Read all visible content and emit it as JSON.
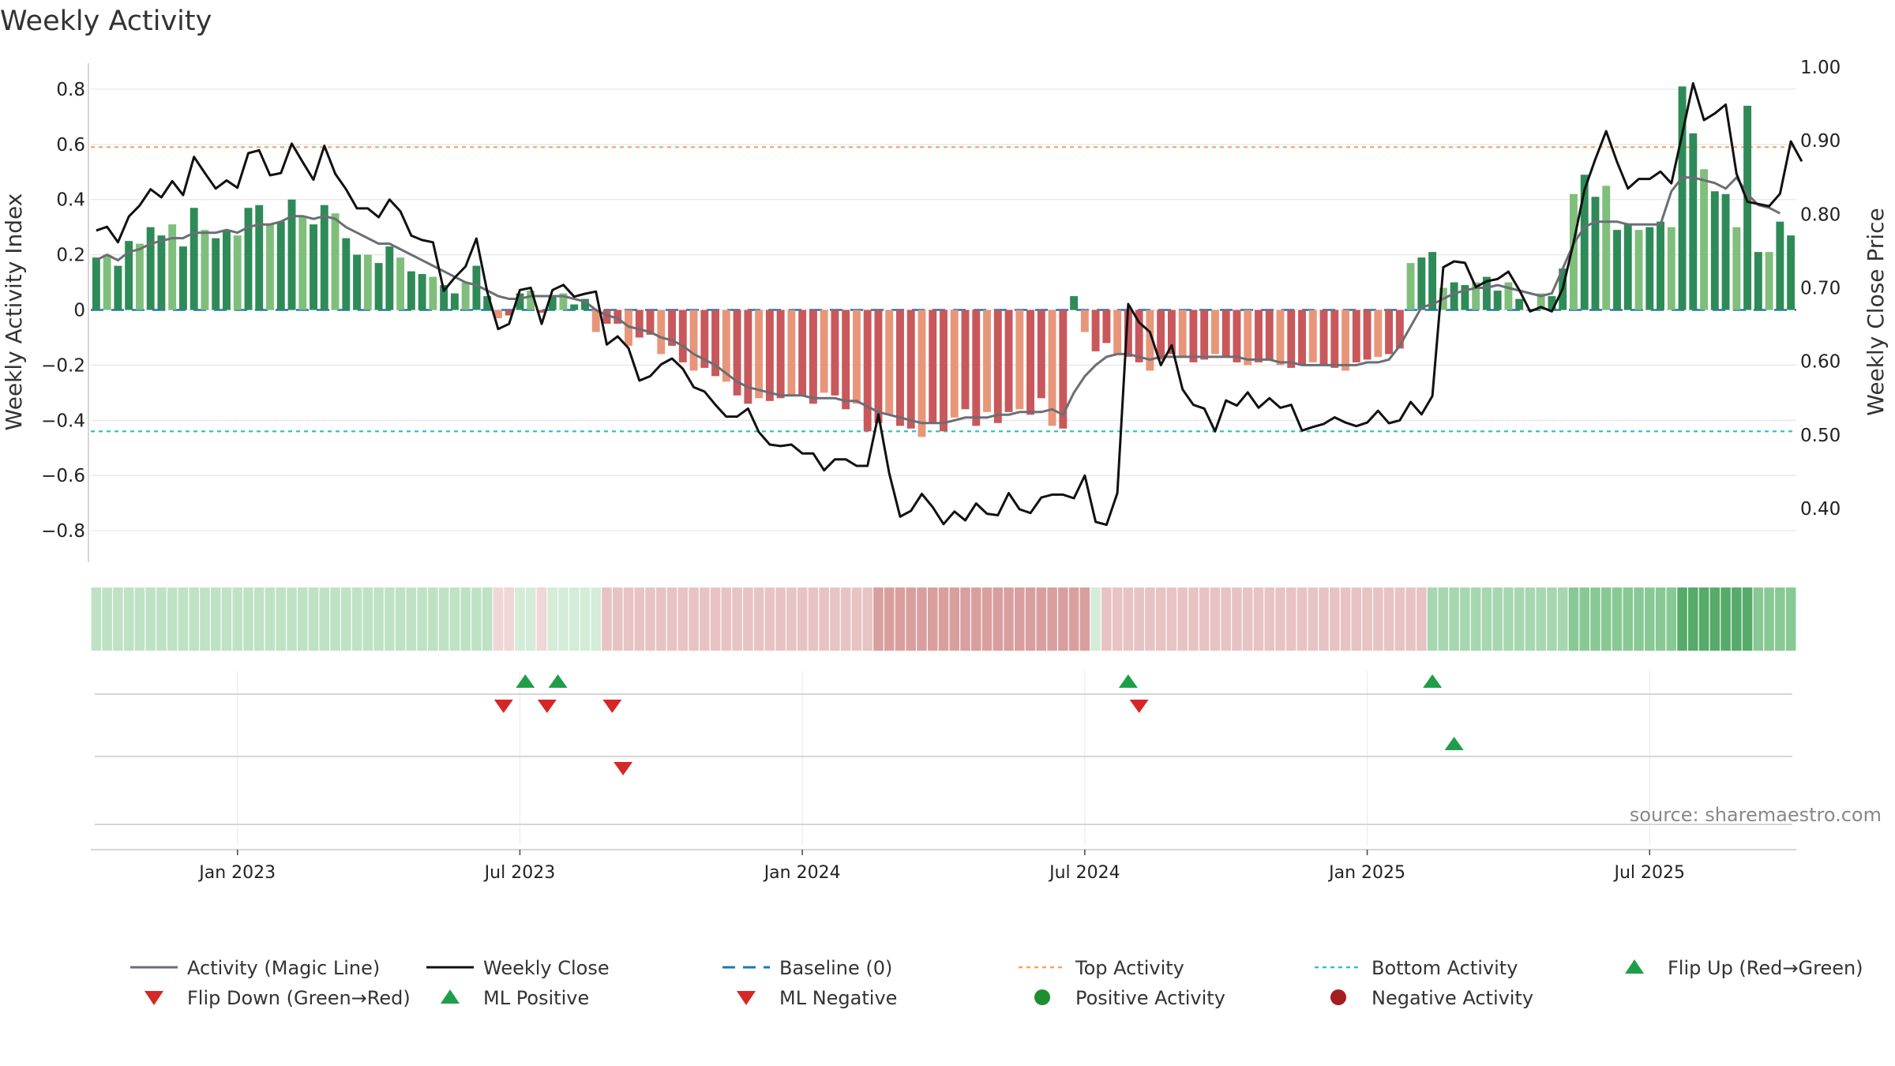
{
  "chart_data": {
    "type": "bar+line",
    "title": "Weekly Activity",
    "ylabel": "Weekly Activity Index",
    "y2label": "Weekly Close Price",
    "ylim": [
      -0.88,
      0.88
    ],
    "y2lim": [
      0.34,
      1.0
    ],
    "yticks": [
      0.8,
      0.6,
      0.4,
      0.2,
      0,
      -0.2,
      -0.4,
      -0.6,
      -0.8
    ],
    "ytick_labels": [
      "0.8",
      "0.6",
      "0.4",
      "0.2",
      "0",
      "−0.2",
      "−0.4",
      "−0.6",
      "−0.8"
    ],
    "y2ticks": [
      1.0,
      0.9,
      0.8,
      0.7,
      0.6,
      0.5,
      0.4
    ],
    "y2tick_labels": [
      "1.00",
      "0.90",
      "0.80",
      "0.70",
      "0.60",
      "0.50",
      "0.40"
    ],
    "xticks": [
      {
        "week": 13,
        "label": "Jan 2023"
      },
      {
        "week": 39,
        "label": "Jul 2023"
      },
      {
        "week": 65,
        "label": "Jan 2024"
      },
      {
        "week": 91,
        "label": "Jul 2024"
      },
      {
        "week": 117,
        "label": "Jan 2025"
      },
      {
        "week": 143,
        "label": "Jul 2025"
      }
    ],
    "top_activity": 0.59,
    "bottom_activity": -0.44,
    "baseline": 0,
    "activity": [
      0.19,
      0.2,
      0.16,
      0.25,
      0.24,
      0.3,
      0.27,
      0.31,
      0.23,
      0.37,
      0.29,
      0.26,
      0.29,
      0.27,
      0.37,
      0.38,
      0.31,
      0.32,
      0.4,
      0.34,
      0.31,
      0.38,
      0.35,
      0.26,
      0.2,
      0.2,
      0.17,
      0.23,
      0.19,
      0.14,
      0.13,
      0.12,
      0.09,
      0.06,
      0.1,
      0.16,
      0.05,
      -0.03,
      -0.02,
      0.06,
      0.07,
      -0.01,
      0.05,
      0.06,
      0.02,
      0.04,
      -0.08,
      -0.05,
      -0.05,
      -0.13,
      -0.1,
      -0.09,
      -0.16,
      -0.13,
      -0.19,
      -0.22,
      -0.21,
      -0.24,
      -0.26,
      -0.31,
      -0.34,
      -0.32,
      -0.33,
      -0.32,
      -0.31,
      -0.31,
      -0.34,
      -0.3,
      -0.31,
      -0.36,
      -0.34,
      -0.44,
      -0.41,
      -0.38,
      -0.42,
      -0.43,
      -0.46,
      -0.41,
      -0.44,
      -0.39,
      -0.36,
      -0.42,
      -0.37,
      -0.41,
      -0.37,
      -0.36,
      -0.38,
      -0.32,
      -0.42,
      -0.43,
      0.05,
      -0.08,
      -0.15,
      -0.12,
      -0.16,
      -0.17,
      -0.19,
      -0.22,
      -0.18,
      -0.16,
      -0.17,
      -0.19,
      -0.18,
      -0.16,
      -0.17,
      -0.19,
      -0.2,
      -0.19,
      -0.18,
      -0.2,
      -0.21,
      -0.2,
      -0.19,
      -0.2,
      -0.21,
      -0.22,
      -0.19,
      -0.18,
      -0.17,
      -0.16,
      -0.14,
      0.17,
      0.19,
      0.21,
      0.08,
      0.1,
      0.09,
      0.1,
      0.12,
      0.07,
      0.1,
      0.04,
      0.0,
      0.06,
      0.05,
      0.15,
      0.42,
      0.49,
      0.41,
      0.45,
      0.29,
      0.31,
      0.29,
      0.3,
      0.32,
      0.3,
      0.81,
      0.64,
      0.51,
      0.43,
      0.42,
      0.3,
      0.74,
      0.21,
      0.21,
      0.32,
      0.27
    ],
    "magic_line": [
      0.18,
      0.2,
      0.18,
      0.21,
      0.22,
      0.24,
      0.25,
      0.26,
      0.26,
      0.28,
      0.28,
      0.28,
      0.29,
      0.28,
      0.3,
      0.31,
      0.31,
      0.32,
      0.34,
      0.34,
      0.33,
      0.34,
      0.33,
      0.3,
      0.28,
      0.26,
      0.24,
      0.24,
      0.22,
      0.2,
      0.18,
      0.16,
      0.14,
      0.12,
      0.1,
      0.09,
      0.07,
      0.05,
      0.04,
      0.04,
      0.05,
      0.05,
      0.05,
      0.05,
      0.04,
      0.03,
      0.0,
      -0.02,
      -0.03,
      -0.06,
      -0.07,
      -0.08,
      -0.1,
      -0.11,
      -0.13,
      -0.16,
      -0.18,
      -0.2,
      -0.23,
      -0.26,
      -0.28,
      -0.29,
      -0.3,
      -0.31,
      -0.31,
      -0.31,
      -0.32,
      -0.32,
      -0.32,
      -0.33,
      -0.33,
      -0.35,
      -0.37,
      -0.38,
      -0.39,
      -0.4,
      -0.41,
      -0.41,
      -0.41,
      -0.4,
      -0.39,
      -0.39,
      -0.39,
      -0.38,
      -0.38,
      -0.37,
      -0.37,
      -0.37,
      -0.36,
      -0.38,
      -0.3,
      -0.24,
      -0.2,
      -0.17,
      -0.16,
      -0.16,
      -0.17,
      -0.18,
      -0.17,
      -0.17,
      -0.17,
      -0.17,
      -0.17,
      -0.17,
      -0.17,
      -0.17,
      -0.18,
      -0.18,
      -0.18,
      -0.19,
      -0.19,
      -0.2,
      -0.2,
      -0.2,
      -0.2,
      -0.2,
      -0.2,
      -0.19,
      -0.19,
      -0.18,
      -0.13,
      -0.06,
      0.01,
      0.02,
      0.04,
      0.06,
      0.07,
      0.08,
      0.08,
      0.09,
      0.08,
      0.07,
      0.06,
      0.05,
      0.06,
      0.15,
      0.24,
      0.3,
      0.32,
      0.32,
      0.32,
      0.31,
      0.31,
      0.31,
      0.31,
      0.43,
      0.48,
      0.48,
      0.47,
      0.46,
      0.44,
      0.48,
      0.42,
      0.38,
      0.37,
      0.35
    ],
    "weekly_close": [
      0.778,
      0.783,
      0.762,
      0.797,
      0.812,
      0.834,
      0.823,
      0.845,
      0.826,
      0.878,
      0.856,
      0.835,
      0.846,
      0.836,
      0.883,
      0.887,
      0.853,
      0.856,
      0.896,
      0.871,
      0.847,
      0.893,
      0.855,
      0.834,
      0.808,
      0.808,
      0.796,
      0.82,
      0.804,
      0.771,
      0.765,
      0.762,
      0.696,
      0.714,
      0.729,
      0.767,
      0.694,
      0.644,
      0.651,
      0.697,
      0.7,
      0.651,
      0.697,
      0.704,
      0.688,
      0.692,
      0.695,
      0.623,
      0.634,
      0.618,
      0.574,
      0.58,
      0.596,
      0.604,
      0.59,
      0.565,
      0.559,
      0.541,
      0.525,
      0.525,
      0.536,
      0.504,
      0.487,
      0.485,
      0.487,
      0.475,
      0.475,
      0.452,
      0.467,
      0.467,
      0.458,
      0.458,
      0.528,
      0.448,
      0.389,
      0.397,
      0.42,
      0.402,
      0.379,
      0.396,
      0.384,
      0.407,
      0.393,
      0.391,
      0.421,
      0.399,
      0.394,
      0.415,
      0.419,
      0.419,
      0.414,
      0.445,
      0.382,
      0.378,
      0.421,
      0.678,
      0.653,
      0.64,
      0.595,
      0.622,
      0.562,
      0.541,
      0.536,
      0.505,
      0.547,
      0.54,
      0.558,
      0.537,
      0.55,
      0.537,
      0.541,
      0.506,
      0.511,
      0.515,
      0.524,
      0.517,
      0.512,
      0.517,
      0.533,
      0.516,
      0.52,
      0.545,
      0.528,
      0.553,
      0.728,
      0.736,
      0.734,
      0.701,
      0.709,
      0.712,
      0.722,
      0.697,
      0.668,
      0.674,
      0.668,
      0.699,
      0.762,
      0.833,
      0.875,
      0.913,
      0.871,
      0.835,
      0.848,
      0.848,
      0.858,
      0.842,
      0.909,
      0.978,
      0.928,
      0.937,
      0.949,
      0.855,
      0.817,
      0.814,
      0.811,
      0.828,
      0.899,
      0.872
    ],
    "band_levels": [
      2,
      2,
      2,
      2,
      2,
      2,
      2,
      2,
      2,
      2,
      2,
      2,
      2,
      2,
      2,
      2,
      2,
      2,
      2,
      2,
      2,
      2,
      2,
      2,
      2,
      2,
      2,
      2,
      2,
      2,
      2,
      2,
      2,
      2,
      2,
      2,
      2,
      -1,
      -1,
      1,
      1,
      -1,
      1,
      1,
      1,
      1,
      1,
      -2,
      -2,
      -2,
      -2,
      -2,
      -2,
      -2,
      -2,
      -2,
      -2,
      -2,
      -2,
      -2,
      -2,
      -2,
      -2,
      -2,
      -2,
      -2,
      -2,
      -2,
      -2,
      -2,
      -2,
      -2,
      -3,
      -3,
      -3,
      -3,
      -3,
      -3,
      -3,
      -3,
      -3,
      -3,
      -3,
      -3,
      -3,
      -3,
      -3,
      -3,
      -3,
      -3,
      -3,
      -3,
      1,
      -2,
      -2,
      -2,
      -2,
      -2,
      -2,
      -2,
      -2,
      -2,
      -2,
      -2,
      -2,
      -2,
      -2,
      -2,
      -2,
      -2,
      -2,
      -2,
      -2,
      -2,
      -2,
      -2,
      -2,
      -2,
      -2,
      -2,
      -2,
      -2,
      -2,
      3,
      3,
      3,
      3,
      3,
      3,
      3,
      3,
      3,
      3,
      3,
      3,
      3,
      4,
      4,
      4,
      4,
      4,
      4,
      4,
      4,
      4,
      4,
      5,
      5,
      5,
      5,
      5,
      5,
      5,
      4,
      4,
      4,
      4
    ],
    "markers": [
      {
        "row": 1,
        "kind": "up",
        "week": 39.5
      },
      {
        "row": 1,
        "kind": "up",
        "week": 42.5
      },
      {
        "row": 1,
        "kind": "down",
        "week": 37.5
      },
      {
        "row": 1,
        "kind": "down",
        "week": 41.5
      },
      {
        "row": 1,
        "kind": "down",
        "week": 47.5
      },
      {
        "row": 1,
        "kind": "up",
        "week": 95
      },
      {
        "row": 1,
        "kind": "down",
        "week": 96
      },
      {
        "row": 1,
        "kind": "up",
        "week": 123
      },
      {
        "row": 2,
        "kind": "up",
        "week": 125
      },
      {
        "row": 2,
        "kind": "down",
        "week": 48.5
      }
    ],
    "legend": [
      {
        "label": "Activity (Magic Line)",
        "symbol": "line",
        "color": "#6b6e75"
      },
      {
        "label": "Weekly Close",
        "symbol": "line",
        "color": "#111111"
      },
      {
        "label": "Baseline (0)",
        "symbol": "dash",
        "color": "#1f77b4"
      },
      {
        "label": "Top Activity",
        "symbol": "dot",
        "color": "#f4a460"
      },
      {
        "label": "Bottom Activity",
        "symbol": "dot",
        "color": "#2ec4c4"
      },
      {
        "label": "Flip Up (Red→Green)",
        "symbol": "tri-up",
        "color": "#1f9e4a"
      },
      {
        "label": "Flip Down (Green→Red)",
        "symbol": "tri-down",
        "color": "#d62728"
      },
      {
        "label": "ML Positive",
        "symbol": "tri-up",
        "color": "#1f9e4a"
      },
      {
        "label": "ML Negative",
        "symbol": "tri-down",
        "color": "#d62728"
      },
      {
        "label": "Positive Activity",
        "symbol": "circle",
        "color": "#1e8f2e"
      },
      {
        "label": "Negative Activity",
        "symbol": "circle",
        "color": "#a31f1f"
      }
    ],
    "source": "source: sharemaestro.com",
    "colors": {
      "pos_dark": "#2e8b57",
      "pos_light": "#7fbf7b",
      "neg_dark": "#c8585b",
      "neg_light": "#e8967a",
      "band_green": [
        "#d4ecd8",
        "#bfe2c5",
        "#a7d7b0",
        "#88c895",
        "#56aa6a"
      ],
      "band_red": [
        "#f0d6d6",
        "#e8c3c3",
        "#d99f9f"
      ],
      "grid": "#e6e6e6",
      "axis": "#c8c8c8"
    }
  }
}
